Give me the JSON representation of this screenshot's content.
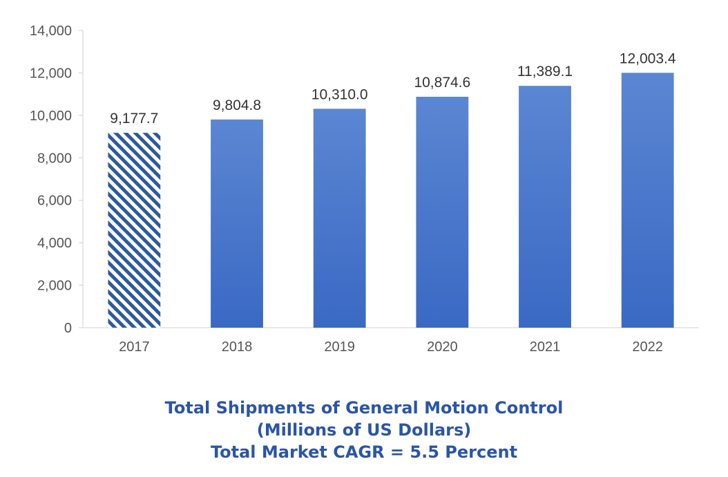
{
  "chart_data": {
    "type": "bar",
    "categories": [
      "2017",
      "2018",
      "2019",
      "2020",
      "2021",
      "2022"
    ],
    "values": [
      9177.7,
      9804.8,
      10310.0,
      10874.6,
      11389.1,
      12003.4
    ],
    "data_labels": [
      "9,177.7",
      "9,804.8",
      "10,310.0",
      "10,874.6",
      "11,389.1",
      "12,003.4"
    ],
    "ylim": [
      0,
      14000
    ],
    "yticks": [
      0,
      2000,
      4000,
      6000,
      8000,
      10000,
      12000,
      14000
    ],
    "ytick_labels": [
      "0",
      "2,000",
      "4,000",
      "6,000",
      "8,000",
      "10,000",
      "12,000",
      "14,000"
    ],
    "grid": false,
    "bar_color": "#3a69c4",
    "bar_color_top": "#5b86d2",
    "hatched_bar_color": "#2d5a9e",
    "caption": [
      "Total Shipments of General Motion Control",
      "(Millions of US Dollars)",
      "Total Market CAGR = 5.5 Percent"
    ]
  }
}
